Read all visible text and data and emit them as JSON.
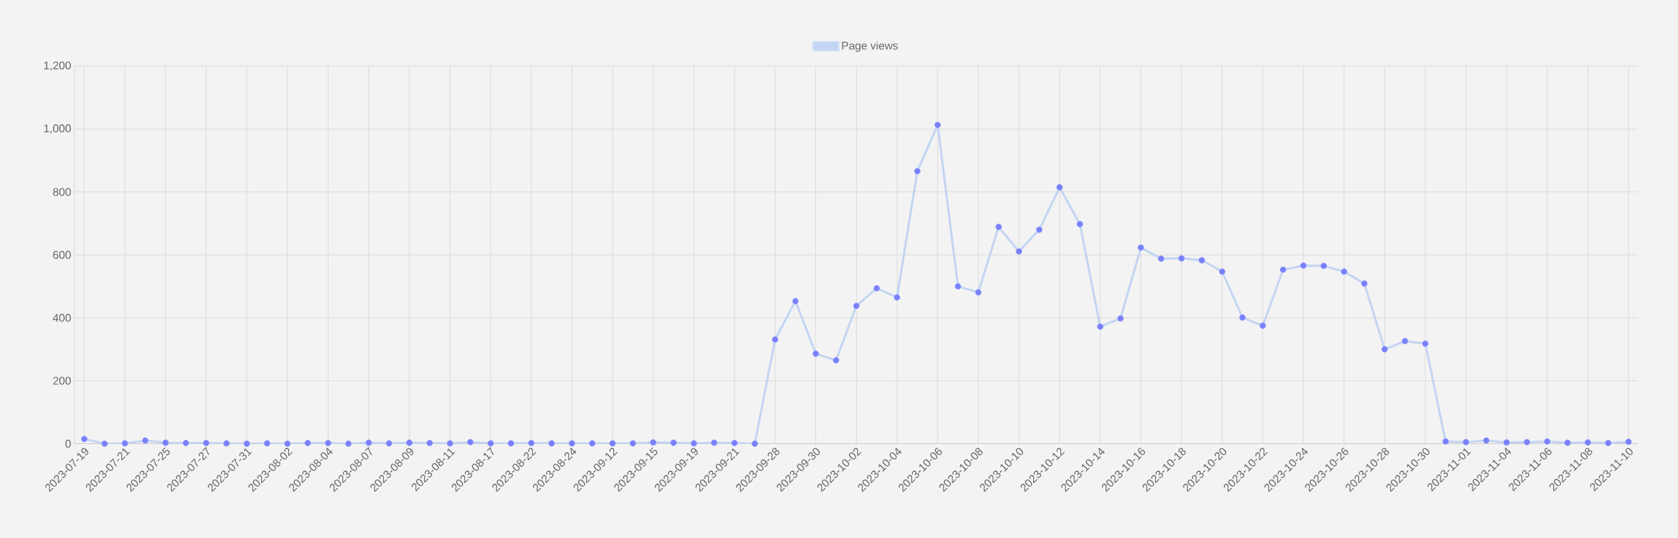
{
  "chart_data": {
    "type": "line",
    "categories": [
      "2023-07-19",
      null,
      "2023-07-21",
      null,
      "2023-07-25",
      null,
      "2023-07-27",
      null,
      "2023-07-31",
      null,
      "2023-08-02",
      null,
      "2023-08-04",
      null,
      "2023-08-07",
      null,
      "2023-08-09",
      null,
      "2023-08-11",
      null,
      "2023-08-17",
      null,
      "2023-08-22",
      null,
      "2023-08-24",
      null,
      "2023-09-12",
      null,
      "2023-09-15",
      null,
      "2023-09-19",
      null,
      "2023-09-21",
      null,
      "2023-09-28",
      null,
      "2023-09-30",
      null,
      "2023-10-02",
      null,
      "2023-10-04",
      null,
      "2023-10-06",
      null,
      "2023-10-08",
      null,
      "2023-10-10",
      null,
      "2023-10-12",
      null,
      "2023-10-14",
      null,
      "2023-10-16",
      null,
      "2023-10-18",
      null,
      "2023-10-20",
      null,
      "2023-10-22",
      null,
      "2023-10-24",
      null,
      "2023-10-26",
      null,
      "2023-10-28",
      null,
      "2023-10-30",
      null,
      "2023-11-01",
      null,
      "2023-11-04",
      null,
      "2023-11-06",
      null,
      "2023-11-08",
      null,
      "2023-11-10"
    ],
    "series": [
      {
        "name": "Page views",
        "color": "#c3d5f3",
        "values": [
          15,
          0,
          1,
          10,
          3,
          2,
          2,
          1,
          0,
          1,
          0,
          2,
          2,
          0,
          3,
          1,
          3,
          2,
          1,
          5,
          1,
          1,
          2,
          1,
          1,
          1,
          1,
          1,
          4,
          3,
          1,
          3,
          2,
          0,
          331,
          453,
          286,
          265,
          438,
          494,
          465,
          866,
          1013,
          500,
          481,
          689,
          611,
          680,
          815,
          698,
          372,
          398,
          623,
          588,
          589,
          583,
          547,
          401,
          375,
          553,
          566,
          565,
          547,
          509,
          300,
          326,
          318,
          7,
          5,
          10,
          4,
          5,
          7,
          3,
          4,
          2,
          6
        ]
      }
    ],
    "ylim": [
      0,
      1200
    ],
    "yticks": [
      0,
      200,
      400,
      600,
      800,
      {
        "value": 1000,
        "label": "1,000"
      },
      {
        "value": 1200,
        "label": "1,200"
      }
    ],
    "grid": true,
    "legend": "top",
    "marker": "circle",
    "line_style": "solid"
  }
}
